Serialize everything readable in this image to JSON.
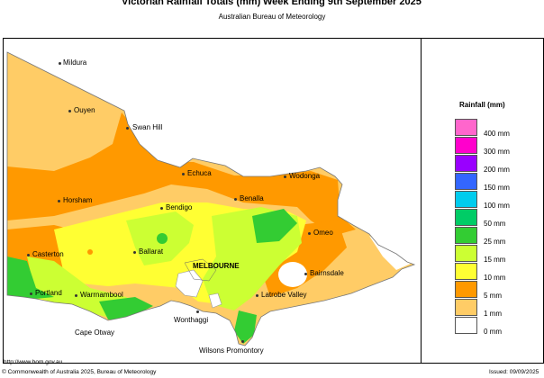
{
  "title_left": "Victorian Rainfall Totals (mm)",
  "title_right": "Week Ending 9th September 2025",
  "subtitle": "Australian Bureau of Meteorology",
  "legend": {
    "title": "Rainfall (mm)",
    "items": [
      {
        "label": "400 mm",
        "color": "#ff66cc"
      },
      {
        "label": "300 mm",
        "color": "#ff00cc"
      },
      {
        "label": "200 mm",
        "color": "#9900ff"
      },
      {
        "label": "150 mm",
        "color": "#3366ff"
      },
      {
        "label": "100 mm",
        "color": "#00ccee"
      },
      {
        "label": "50 mm",
        "color": "#00cc66"
      },
      {
        "label": "25 mm",
        "color": "#33cc33"
      },
      {
        "label": "15 mm",
        "color": "#ccff33"
      },
      {
        "label": "10 mm",
        "color": "#ffff33"
      },
      {
        "label": "5 mm",
        "color": "#ff9900"
      },
      {
        "label": "1 mm",
        "color": "#ffcc66"
      },
      {
        "label": "0 mm",
        "color": "#ffffff"
      }
    ]
  },
  "towns": {
    "mildura": "Mildura",
    "ouyen": "Ouyen",
    "swan_hill": "Swan Hill",
    "echuca": "Echuca",
    "wodonga": "Wodonga",
    "benalla": "Benalla",
    "horsham": "Horsham",
    "bendigo": "Bendigo",
    "omeo": "Omeo",
    "casterton": "Casterton",
    "ballarat": "Ballarat",
    "melbourne": "MELBOURNE",
    "bairnsdale": "Bairnsdale",
    "portland": "Portland",
    "warrnambool": "Warrnambool",
    "latrobe_valley": "Latrobe Valley",
    "wonthaggi": "Wonthaggi",
    "cape_otway": "Cape Otway",
    "wilsons_promontory": "Wilsons Promontory"
  },
  "footer": {
    "url": "http://www.bom.gov.au",
    "copyright": "© Commonwealth of Australia 2025, Bureau of Meteorology",
    "issued": "Issued: 09/09/2025"
  }
}
